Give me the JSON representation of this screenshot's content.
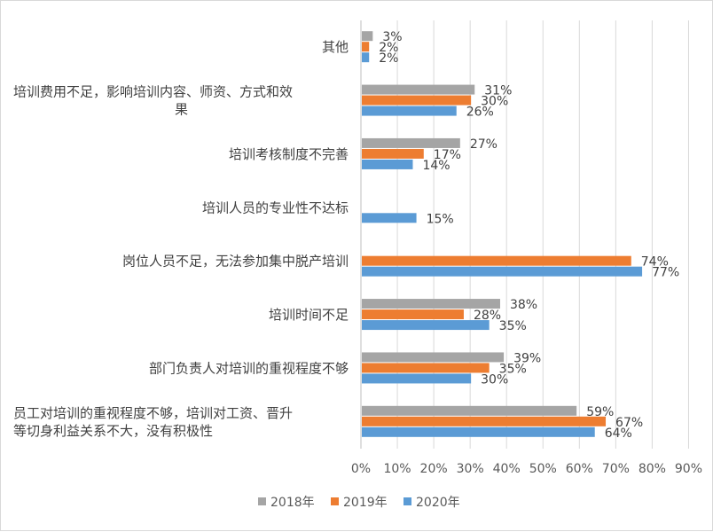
{
  "chart_data": {
    "type": "bar",
    "orientation": "horizontal",
    "categories": [
      [
        "其他"
      ],
      [
        "培训费用不足，影响培训内容、师资、方式和效",
        "果"
      ],
      [
        "培训考核制度不完善"
      ],
      [
        "培训人员的专业性不达标"
      ],
      [
        "岗位人员不足，无法参加集中脱产培训"
      ],
      [
        "培训时间不足"
      ],
      [
        "部门负责人对培训的重视程度不够"
      ],
      [
        "员工对培训的重视程度不够，培训对工资、晋升",
        "等切身利益关系不大，没有积极性"
      ]
    ],
    "series": [
      {
        "name": "2018年",
        "color": "#a5a5a5",
        "values": [
          3,
          31,
          27,
          null,
          null,
          38,
          39,
          59
        ],
        "labels": [
          "3%",
          "31%",
          "27%",
          "",
          "",
          "38%",
          "39%",
          "59%"
        ]
      },
      {
        "name": "2019年",
        "color": "#ed7d31",
        "values": [
          2,
          30,
          17,
          null,
          74,
          28,
          35,
          67
        ],
        "labels": [
          "2%",
          "30%",
          "17%",
          "",
          "74%",
          "28%",
          "35%",
          "67%"
        ]
      },
      {
        "name": "2020年",
        "color": "#5b9bd5",
        "values": [
          2,
          26,
          14,
          15,
          77,
          35,
          30,
          64
        ],
        "labels": [
          "2%",
          "26%",
          "14%",
          "15%",
          "77%",
          "35%",
          "30%",
          "64%"
        ]
      }
    ],
    "x_ticks": [
      "0%",
      "10%",
      "20%",
      "30%",
      "40%",
      "50%",
      "60%",
      "70%",
      "80%",
      "90%"
    ],
    "xlim": [
      0,
      90
    ],
    "grid": true,
    "legend_position": "bottom"
  }
}
